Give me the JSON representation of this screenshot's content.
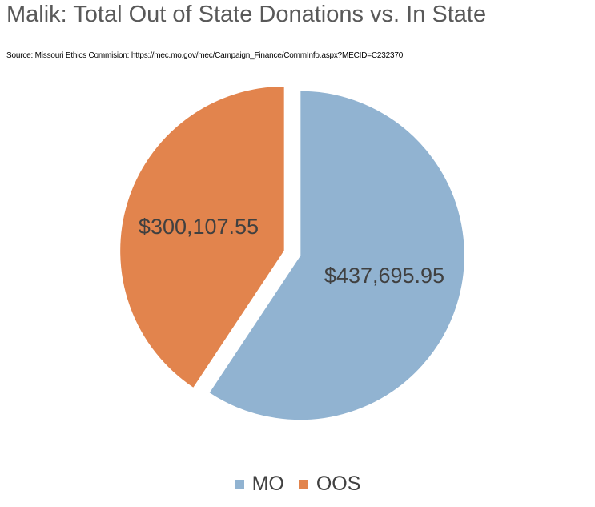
{
  "chart_data": {
    "type": "pie",
    "title": "Malik: Total Out of State Donations vs. In State",
    "subtitle": "Source: Missouri Ethics Commision: https://mec.mo.gov/mec/Campaign_Finance/CommInfo.aspx?MECID=C232370",
    "slices": [
      {
        "name": "MO",
        "value": 437695.95,
        "label": "$437,695.95",
        "color": "#91b3d1"
      },
      {
        "name": "OOS",
        "value": 300107.55,
        "label": "$300,107.55",
        "color": "#e2844d"
      }
    ],
    "legend_position": "bottom",
    "exploded": true
  }
}
